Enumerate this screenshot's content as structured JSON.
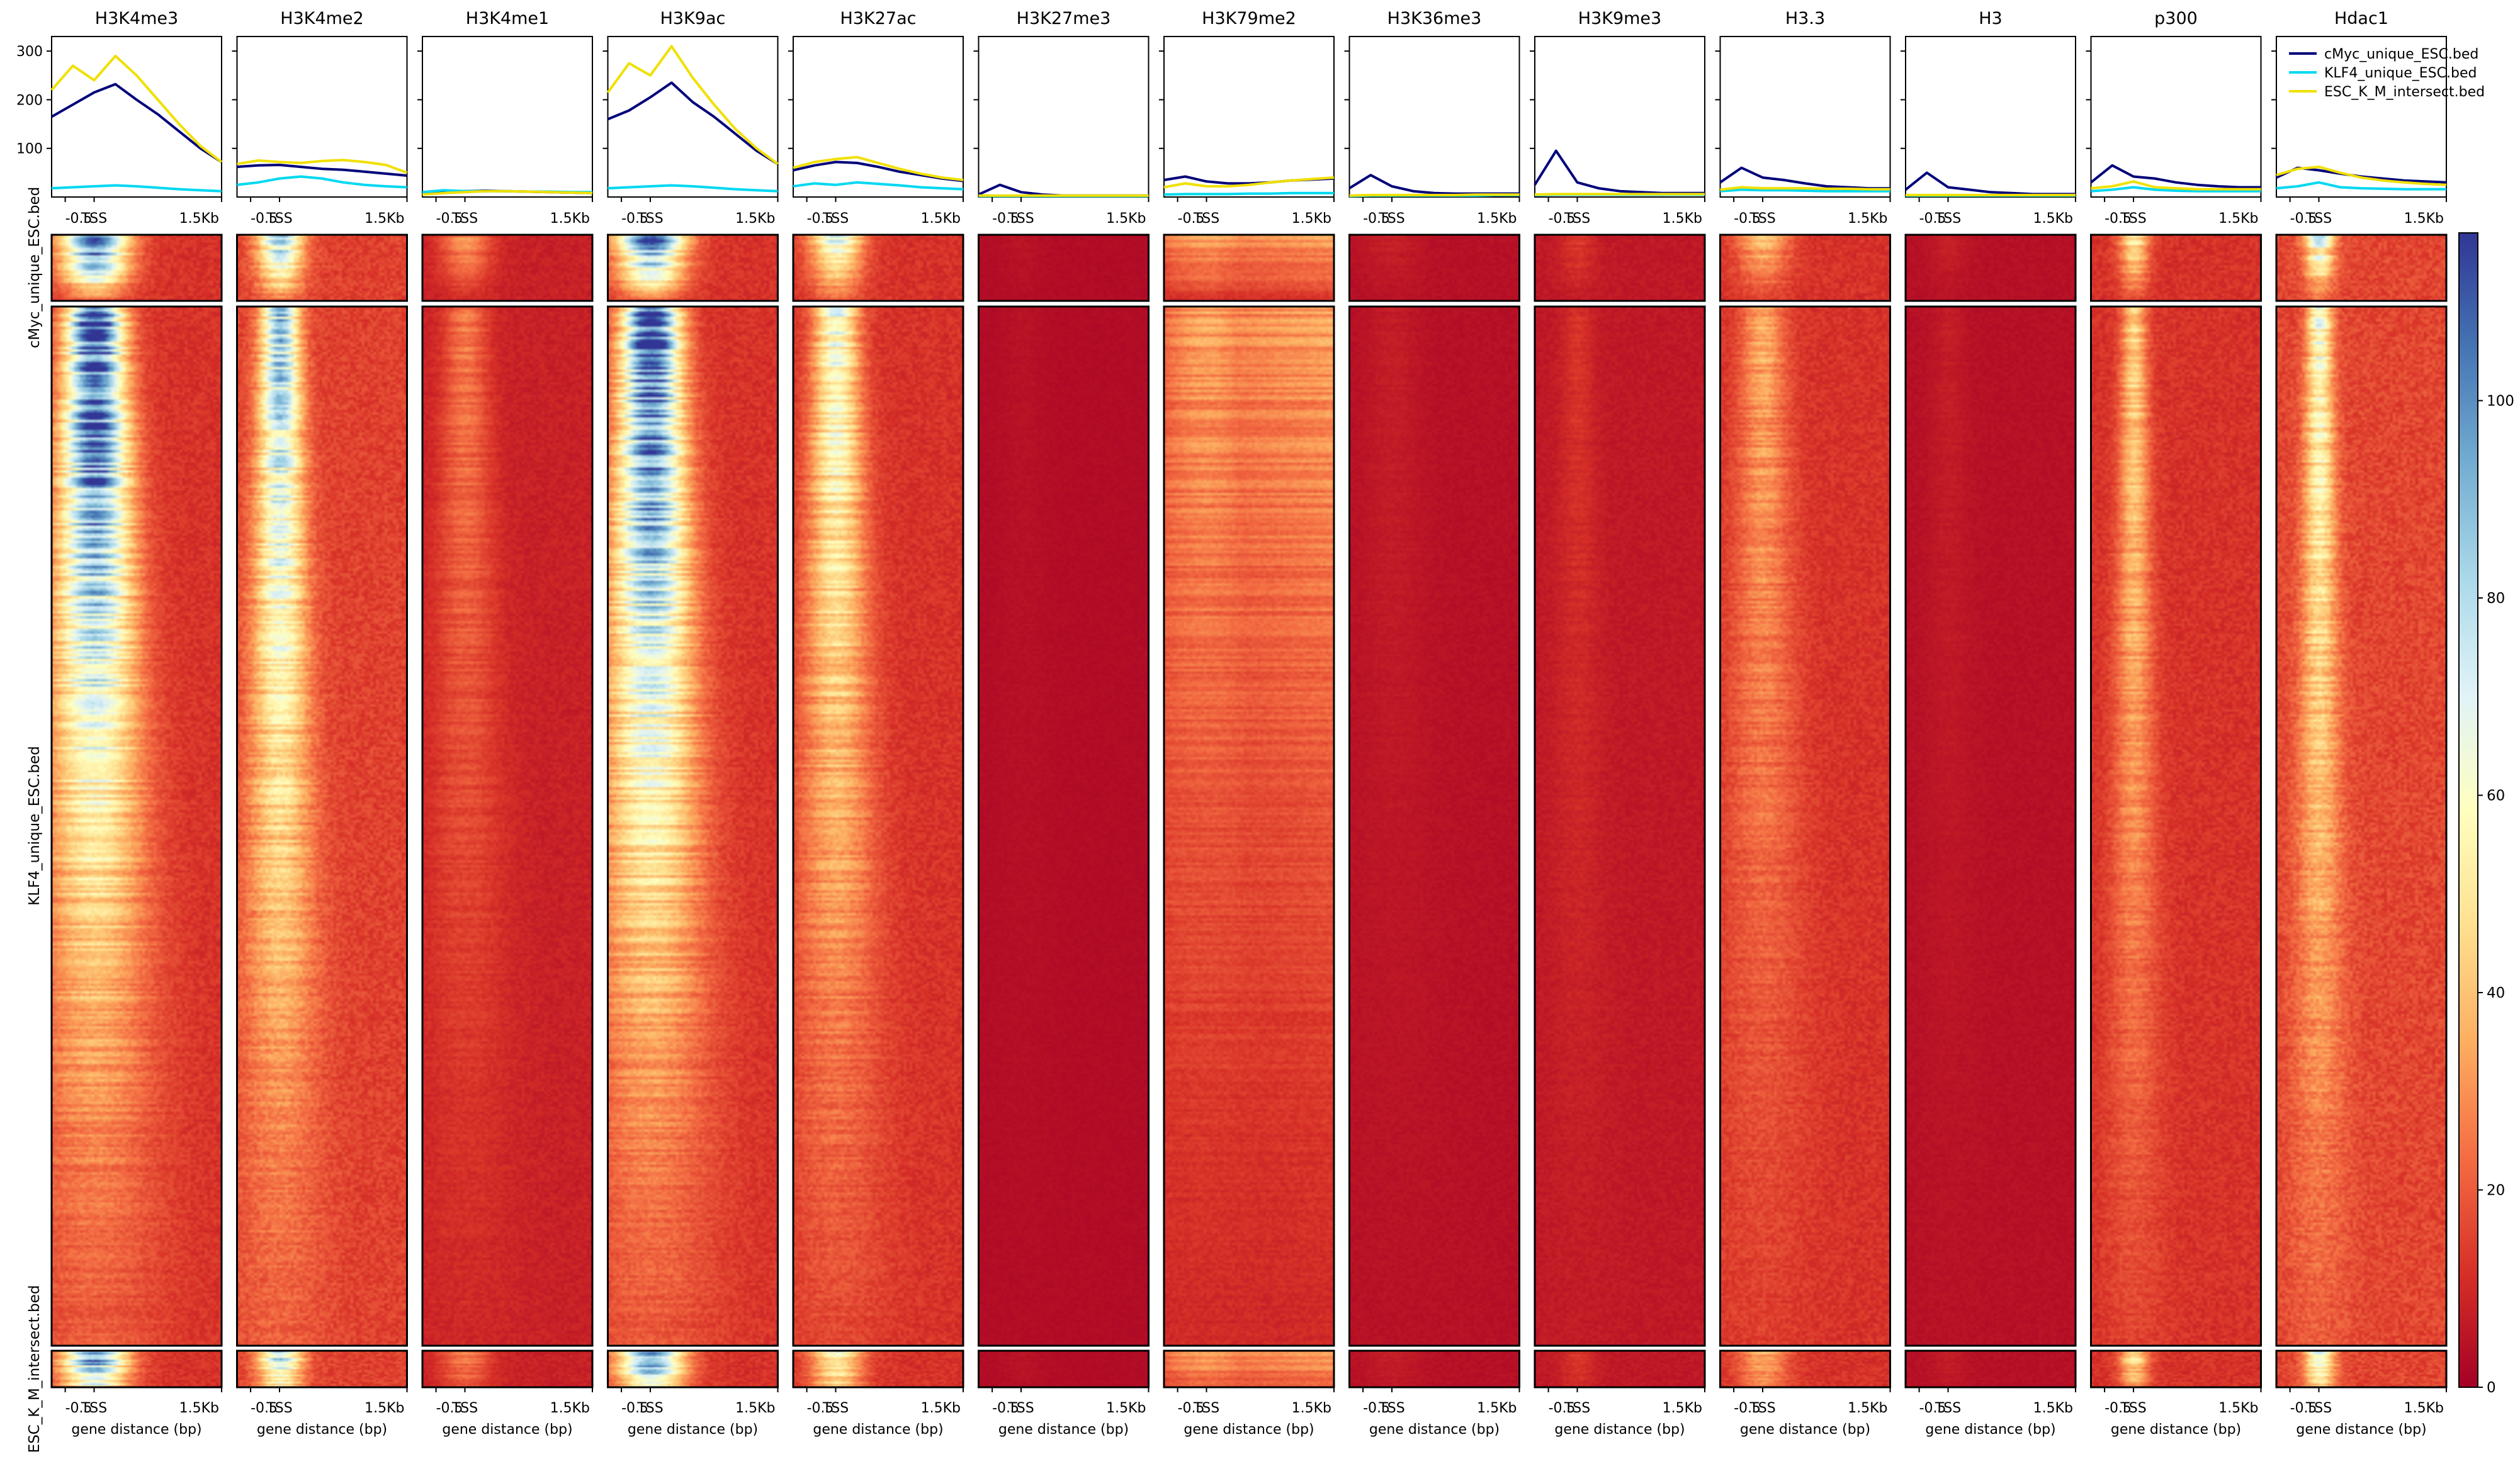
{
  "chart_data": {
    "type": "heatmap",
    "tracks": [
      "H3K4me3",
      "H3K4me2",
      "H3K4me1",
      "H3K9ac",
      "H3K27ac",
      "H3K27me3",
      "H3K79me2",
      "H3K36me3",
      "H3K9me3",
      "H3.3",
      "H3",
      "p300",
      "Hdac1"
    ],
    "groups": [
      "cMyc_unique_ESC.bed",
      "KLF4_unique_ESC.bed",
      "ESC_K_M_intersect.bed"
    ],
    "profile_x_ticks": [
      "-0.5",
      "TSS",
      "1.5Kb"
    ],
    "profile_y_ticks": [
      "100",
      "200",
      "300"
    ],
    "profile_ylim": [
      0,
      330
    ],
    "profile_x": [
      -500,
      0,
      1500
    ],
    "heatmap_xlabel": "gene distance (bp)",
    "colorbar": {
      "ticks": [
        "0",
        "20",
        "40",
        "60",
        "80",
        "100"
      ],
      "range": [
        0,
        117
      ],
      "colormap": "RdYlBu"
    },
    "colors": {
      "cMyc_unique_ESC.bed": "#00007a",
      "KLF4_unique_ESC.bed": "#00d8f0",
      "ESC_K_M_intersect.bed": "#f0e000"
    },
    "legend": {
      "placement": "top-right",
      "entries": [
        "cMyc_unique_ESC.bed",
        "KLF4_unique_ESC.bed",
        "ESC_K_M_intersect.bed"
      ]
    },
    "profiles": {
      "H3K4me3": [
        [
          165,
          190,
          215,
          232,
          200,
          170,
          135,
          100,
          72
        ],
        [
          18,
          20,
          22,
          24,
          22,
          19,
          16,
          14,
          12
        ],
        [
          220,
          270,
          240,
          290,
          250,
          200,
          150,
          105,
          72
        ]
      ],
      "H3K4me2": [
        [
          62,
          65,
          66,
          62,
          58,
          56,
          52,
          48,
          44
        ],
        [
          25,
          30,
          38,
          42,
          38,
          30,
          25,
          22,
          20
        ],
        [
          68,
          75,
          72,
          70,
          74,
          76,
          72,
          66,
          50
        ]
      ],
      "H3K4me1": [
        [
          8,
          10,
          12,
          13,
          12,
          11,
          10,
          9,
          8
        ],
        [
          10,
          14,
          12,
          12,
          12,
          11,
          11,
          10,
          10
        ],
        [
          5,
          8,
          10,
          12,
          12,
          11,
          10,
          9,
          8
        ]
      ],
      "H3K9ac": [
        [
          160,
          178,
          205,
          235,
          195,
          165,
          130,
          95,
          68
        ],
        [
          18,
          20,
          22,
          24,
          22,
          19,
          16,
          14,
          12
        ],
        [
          215,
          275,
          250,
          310,
          245,
          190,
          140,
          100,
          68
        ]
      ],
      "H3K27ac": [
        [
          55,
          65,
          72,
          70,
          62,
          52,
          45,
          38,
          33
        ],
        [
          22,
          28,
          25,
          30,
          27,
          24,
          20,
          18,
          16
        ],
        [
          60,
          72,
          78,
          82,
          70,
          58,
          48,
          40,
          35
        ]
      ],
      "H3K27me3": [
        [
          5,
          25,
          10,
          5,
          3,
          3,
          3,
          3,
          3
        ],
        [
          2,
          2,
          2,
          2,
          2,
          2,
          2,
          2,
          2
        ],
        [
          3,
          3,
          3,
          3,
          3,
          3,
          3,
          3,
          3
        ]
      ],
      "H3K79me2": [
        [
          35,
          42,
          32,
          28,
          28,
          30,
          34,
          36,
          38
        ],
        [
          5,
          6,
          6,
          6,
          7,
          7,
          8,
          8,
          8
        ],
        [
          20,
          28,
          22,
          22,
          25,
          30,
          34,
          37,
          40
        ]
      ],
      "H3K36me3": [
        [
          18,
          45,
          22,
          12,
          8,
          7,
          7,
          7,
          7
        ],
        [
          2,
          3,
          3,
          3,
          3,
          3,
          3,
          4,
          4
        ],
        [
          3,
          4,
          4,
          4,
          4,
          4,
          5,
          5,
          5
        ]
      ],
      "H3K9me3": [
        [
          25,
          95,
          30,
          18,
          12,
          10,
          8,
          8,
          8
        ],
        [
          4,
          5,
          5,
          5,
          5,
          5,
          5,
          5,
          5
        ],
        [
          5,
          6,
          6,
          6,
          6,
          6,
          6,
          6,
          6
        ]
      ],
      "H3.3": [
        [
          30,
          60,
          40,
          35,
          28,
          22,
          20,
          18,
          18
        ],
        [
          12,
          15,
          14,
          14,
          13,
          12,
          12,
          12,
          12
        ],
        [
          15,
          20,
          18,
          18,
          18,
          17,
          17,
          16,
          16
        ]
      ],
      "H3": [
        [
          15,
          50,
          20,
          15,
          10,
          8,
          6,
          6,
          6
        ],
        [
          3,
          3,
          3,
          3,
          3,
          3,
          3,
          3,
          3
        ],
        [
          4,
          4,
          4,
          4,
          4,
          4,
          4,
          4,
          4
        ]
      ],
      "p300": [
        [
          30,
          65,
          42,
          38,
          30,
          25,
          22,
          20,
          20
        ],
        [
          12,
          15,
          20,
          15,
          13,
          12,
          12,
          12,
          12
        ],
        [
          18,
          22,
          32,
          20,
          18,
          16,
          16,
          16,
          16
        ]
      ],
      "Hdac1": [
        [
          40,
          60,
          55,
          48,
          42,
          38,
          34,
          32,
          30
        ],
        [
          18,
          22,
          30,
          20,
          18,
          17,
          16,
          16,
          16
        ],
        [
          45,
          58,
          62,
          50,
          40,
          34,
          30,
          27,
          25
        ]
      ]
    },
    "heatmap_patterns": {
      "H3K4me3": {
        "base": 12,
        "peak": 115,
        "width": 0.45,
        "top_boost": 1.0,
        "decay": 0.55
      },
      "H3K4me2": {
        "base": 15,
        "peak": 90,
        "width": 0.3,
        "top_boost": 0.7,
        "decay": 0.75
      },
      "H3K4me1": {
        "base": 8,
        "peak": 30,
        "width": 0.35,
        "top_boost": 0.3,
        "decay": 0.9
      },
      "H3K9ac": {
        "base": 12,
        "peak": 112,
        "width": 0.45,
        "top_boost": 1.0,
        "decay": 0.55
      },
      "H3K27ac": {
        "base": 12,
        "peak": 70,
        "width": 0.35,
        "top_boost": 0.6,
        "decay": 0.8
      },
      "H3K27me3": {
        "base": 3,
        "peak": 5,
        "width": 0.3,
        "top_boost": 0.1,
        "decay": 0.9
      },
      "H3K79me2": {
        "base": 8,
        "peak": 35,
        "width": 0.9,
        "top_boost": 0.6,
        "decay": 0.4
      },
      "H3K36me3": {
        "base": 4,
        "peak": 8,
        "width": 0.4,
        "top_boost": 0.3,
        "decay": 0.5
      },
      "H3K9me3": {
        "base": 6,
        "peak": 14,
        "width": 0.25,
        "top_boost": 0.3,
        "decay": 0.8
      },
      "H3.3": {
        "base": 12,
        "peak": 40,
        "width": 0.35,
        "top_boost": 0.4,
        "decay": 0.8
      },
      "H3": {
        "base": 4,
        "peak": 8,
        "width": 0.25,
        "top_boost": 0.3,
        "decay": 0.7
      },
      "p300": {
        "base": 12,
        "peak": 55,
        "width": 0.2,
        "top_boost": 0.3,
        "decay": 0.9
      },
      "Hdac1": {
        "base": 16,
        "peak": 72,
        "width": 0.2,
        "top_boost": 0.4,
        "decay": 0.85
      }
    }
  }
}
